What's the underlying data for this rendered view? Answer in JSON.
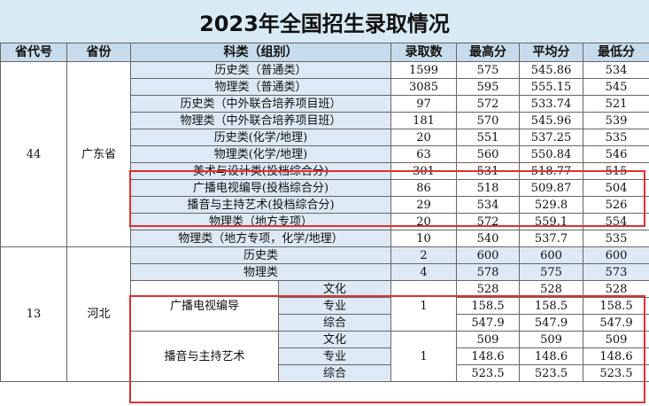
{
  "title": "2023年全国招生录取情况",
  "headers": [
    "省代号",
    "省份",
    "科类（组别）",
    "录取数",
    "最高分",
    "平均分",
    "最低分"
  ],
  "guangdong": {
    "code": "44",
    "province": "广东省",
    "rows": [
      {
        "category": "历史类（普通类）",
        "count": "1599",
        "max": "575",
        "avg": "545.86",
        "min": "534"
      },
      {
        "category": "物理类（普通类）",
        "count": "3085",
        "max": "595",
        "avg": "555.15",
        "min": "545"
      },
      {
        "category": "历史类（中外联合培养项目班）",
        "count": "97",
        "max": "572",
        "avg": "533.74",
        "min": "521"
      },
      {
        "category": "物理类（中外联合培养项目班）",
        "count": "181",
        "max": "570",
        "avg": "545.96",
        "min": "539"
      },
      {
        "category": "历史类(化学/地理)",
        "count": "20",
        "max": "551",
        "avg": "537.25",
        "min": "535"
      },
      {
        "category": "物理类(化学/地理)",
        "count": "63",
        "max": "560",
        "avg": "550.84",
        "min": "546"
      },
      {
        "category": "美术与设计类(投档综合分)",
        "count": "301",
        "max": "531",
        "avg": "518.77",
        "min": "515"
      },
      {
        "category": "广播电视编导(投档综合分)",
        "count": "86",
        "max": "518",
        "avg": "509.87",
        "min": "504"
      },
      {
        "category": "播音与主持艺术(投档综合分)",
        "count": "29",
        "max": "534",
        "avg": "529.8",
        "min": "526"
      },
      {
        "category": "物理类（地方专项）",
        "count": "20",
        "max": "572",
        "avg": "559.1",
        "min": "554"
      },
      {
        "category": "物理类（地方专项，化学/地理）",
        "count": "10",
        "max": "540",
        "avg": "537.7",
        "min": "535"
      }
    ]
  },
  "hebei": {
    "code": "13",
    "province": "河北",
    "rows": [
      {
        "category": "历史类",
        "count": "2",
        "max": "600",
        "avg": "600",
        "min": "600"
      },
      {
        "category": "物理类",
        "count": "4",
        "max": "578",
        "avg": "575",
        "min": "573"
      }
    ],
    "art": [
      {
        "category": "广播电视编导",
        "count": "1",
        "subs": [
          {
            "name": "文化",
            "max": "528",
            "avg": "528",
            "min": "528"
          },
          {
            "name": "专业",
            "max": "158.5",
            "avg": "158.5",
            "min": "158.5"
          },
          {
            "name": "综合",
            "max": "547.9",
            "avg": "547.9",
            "min": "547.9"
          }
        ]
      },
      {
        "category": "播音与主持艺术",
        "count": "1",
        "subs": [
          {
            "name": "文化",
            "max": "509",
            "avg": "509",
            "min": "509"
          },
          {
            "name": "专业",
            "max": "148.6",
            "avg": "148.6",
            "min": "148.6"
          },
          {
            "name": "综合",
            "max": "523.5",
            "avg": "523.5",
            "min": "523.5"
          }
        ]
      }
    ]
  },
  "colors": {
    "highlight": "#e03030",
    "header_bg": "#c6dcec",
    "title_bg": "#d8eaf4",
    "row_bg": "#dde9f4"
  }
}
